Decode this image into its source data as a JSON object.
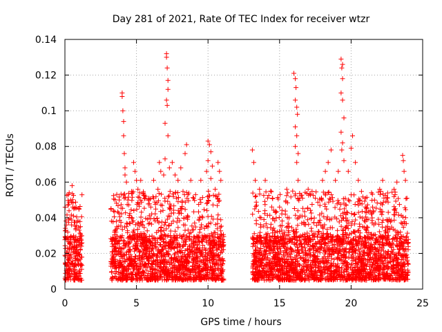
{
  "chart_data": {
    "type": "scatter",
    "title": "Day 281 of 2021, Rate Of TEC Index for receiver wtzr",
    "xlabel": "GPS time / hours",
    "ylabel": "ROTI / TECUs",
    "xlim": [
      0,
      25
    ],
    "ylim": [
      0,
      0.14
    ],
    "xticks": [
      0,
      5,
      10,
      15,
      20,
      25
    ],
    "xtick_labels": [
      "0",
      "5",
      "10",
      "15",
      "20",
      "25"
    ],
    "yticks": [
      0,
      0.02,
      0.04,
      0.06,
      0.08,
      0.1,
      0.12,
      0.14
    ],
    "ytick_labels": [
      "0",
      "0.02",
      "0.04",
      "0.06",
      "0.08",
      "0.1",
      "0.12",
      "0.14"
    ],
    "grid": true,
    "marker": "plus",
    "color": "#ff0000",
    "series": [
      {
        "name": "ROTI",
        "x_ranges": [
          [
            0.0,
            1.2
          ],
          [
            3.2,
            11.1
          ],
          [
            13.1,
            24.0
          ]
        ],
        "base_range": [
          0.005,
          0.03
        ],
        "points": [
          [
            0.1,
            0.036
          ],
          [
            0.2,
            0.032
          ],
          [
            0.3,
            0.054
          ],
          [
            0.4,
            0.05
          ],
          [
            0.5,
            0.058
          ],
          [
            0.55,
            0.046
          ],
          [
            0.6,
            0.041
          ],
          [
            1.0,
            0.033
          ],
          [
            3.6,
            0.038
          ],
          [
            3.8,
            0.05
          ],
          [
            4.0,
            0.11
          ],
          [
            4.0,
            0.108
          ],
          [
            4.05,
            0.1
          ],
          [
            4.1,
            0.094
          ],
          [
            4.1,
            0.086
          ],
          [
            4.15,
            0.076
          ],
          [
            4.2,
            0.068
          ],
          [
            4.2,
            0.064
          ],
          [
            4.3,
            0.06
          ],
          [
            4.4,
            0.05
          ],
          [
            4.8,
            0.071
          ],
          [
            4.9,
            0.066
          ],
          [
            5.0,
            0.061
          ],
          [
            5.1,
            0.056
          ],
          [
            5.3,
            0.061
          ],
          [
            5.6,
            0.051
          ],
          [
            6.0,
            0.046
          ],
          [
            6.2,
            0.061
          ],
          [
            6.5,
            0.056
          ],
          [
            6.6,
            0.071
          ],
          [
            6.7,
            0.066
          ],
          [
            6.9,
            0.064
          ],
          [
            7.0,
            0.073
          ],
          [
            7.1,
            0.132
          ],
          [
            7.1,
            0.13
          ],
          [
            7.15,
            0.124
          ],
          [
            7.2,
            0.117
          ],
          [
            7.2,
            0.112
          ],
          [
            7.1,
            0.106
          ],
          [
            7.15,
            0.103
          ],
          [
            7.0,
            0.093
          ],
          [
            7.2,
            0.086
          ],
          [
            7.3,
            0.068
          ],
          [
            7.5,
            0.071
          ],
          [
            7.7,
            0.064
          ],
          [
            7.9,
            0.061
          ],
          [
            8.1,
            0.068
          ],
          [
            8.4,
            0.076
          ],
          [
            8.5,
            0.081
          ],
          [
            8.8,
            0.061
          ],
          [
            9.0,
            0.051
          ],
          [
            9.5,
            0.061
          ],
          [
            9.9,
            0.066
          ],
          [
            10.0,
            0.083
          ],
          [
            10.1,
            0.081
          ],
          [
            10.2,
            0.077
          ],
          [
            10.0,
            0.072
          ],
          [
            10.3,
            0.069
          ],
          [
            10.2,
            0.062
          ],
          [
            10.5,
            0.056
          ],
          [
            10.7,
            0.071
          ],
          [
            10.8,
            0.066
          ],
          [
            10.9,
            0.061
          ],
          [
            13.1,
            0.078
          ],
          [
            13.2,
            0.071
          ],
          [
            13.3,
            0.061
          ],
          [
            13.6,
            0.056
          ],
          [
            14.0,
            0.061
          ],
          [
            14.5,
            0.051
          ],
          [
            15.0,
            0.046
          ],
          [
            15.5,
            0.056
          ],
          [
            16.0,
            0.121
          ],
          [
            16.1,
            0.118
          ],
          [
            16.15,
            0.113
          ],
          [
            16.1,
            0.106
          ],
          [
            16.2,
            0.102
          ],
          [
            16.25,
            0.098
          ],
          [
            16.1,
            0.091
          ],
          [
            16.2,
            0.086
          ],
          [
            16.1,
            0.08
          ],
          [
            16.3,
            0.076
          ],
          [
            16.2,
            0.071
          ],
          [
            16.3,
            0.061
          ],
          [
            16.6,
            0.051
          ],
          [
            17.0,
            0.056
          ],
          [
            17.5,
            0.051
          ],
          [
            18.0,
            0.061
          ],
          [
            18.2,
            0.066
          ],
          [
            18.4,
            0.071
          ],
          [
            18.6,
            0.078
          ],
          [
            18.9,
            0.061
          ],
          [
            19.1,
            0.066
          ],
          [
            19.3,
            0.129
          ],
          [
            19.4,
            0.126
          ],
          [
            19.35,
            0.124
          ],
          [
            19.4,
            0.118
          ],
          [
            19.3,
            0.11
          ],
          [
            19.4,
            0.106
          ],
          [
            19.5,
            0.096
          ],
          [
            19.3,
            0.088
          ],
          [
            19.4,
            0.082
          ],
          [
            19.35,
            0.078
          ],
          [
            19.5,
            0.072
          ],
          [
            19.8,
            0.066
          ],
          [
            20.0,
            0.079
          ],
          [
            20.1,
            0.086
          ],
          [
            20.3,
            0.071
          ],
          [
            20.5,
            0.061
          ],
          [
            21.0,
            0.051
          ],
          [
            21.5,
            0.046
          ],
          [
            22.0,
            0.056
          ],
          [
            22.2,
            0.061
          ],
          [
            22.5,
            0.051
          ],
          [
            23.0,
            0.056
          ],
          [
            23.2,
            0.06
          ],
          [
            23.6,
            0.075
          ],
          [
            23.65,
            0.072
          ],
          [
            23.7,
            0.066
          ],
          [
            23.8,
            0.061
          ],
          [
            23.9,
            0.051
          ]
        ]
      }
    ]
  }
}
